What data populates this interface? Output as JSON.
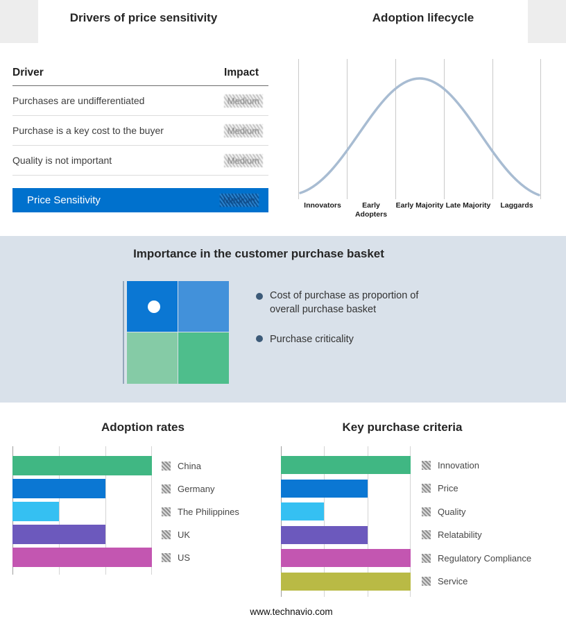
{
  "drivers": {
    "title": "Drivers of price sensitivity",
    "columns": {
      "driver": "Driver",
      "impact": "Impact"
    },
    "rows": [
      {
        "label": "Purchases are undifferentiated",
        "impact": "Medium",
        "impact_redacted": true
      },
      {
        "label": "Purchase is a key cost to the buyer",
        "impact": "Medium",
        "impact_redacted": true
      },
      {
        "label": "Quality is not important",
        "impact": "Medium",
        "impact_redacted": true
      }
    ],
    "summary_row": {
      "label": "Price Sensitivity",
      "impact": "Medium",
      "impact_redacted": true
    },
    "accent_color": "#0071cd"
  },
  "basket": {
    "title": "Importance in the customer purchase basket",
    "bullets": [
      "Cost of purchase as proportion of overall purchase basket",
      "Purchase criticality"
    ],
    "quadrant_colors": [
      "#0b77d3",
      "#4291da",
      "#85cba6",
      "#4ebe8c"
    ],
    "band_background": "#d9e1ea",
    "bullet_color": "#3c5a78"
  },
  "chart_data": [
    {
      "type": "line",
      "title": "Adoption lifecycle",
      "shape": "bell_curve",
      "categories": [
        "Innovators",
        "Early Adopters",
        "Early Majority",
        "Late Majority",
        "Laggards"
      ],
      "y_axis": "none (qualitative normal-distribution adoption curve)",
      "grid": "vertical segment dividers between the five adopter groups",
      "curve_color": "#a8bcd2"
    },
    {
      "type": "bar",
      "orientation": "horizontal",
      "title": "Adoption rates",
      "categories": [
        "China",
        "Germany",
        "The Philippines",
        "UK",
        "US"
      ],
      "values": [
        3,
        2,
        1,
        2,
        3
      ],
      "xlim": [
        0,
        3
      ],
      "x_ticks_labeled": false,
      "note": "values estimated in gridline units; axis has no numeric labels",
      "colors": [
        "#40b783",
        "#0b77d3",
        "#35c0f2",
        "#6c59bd",
        "#c356b1"
      ],
      "legend_position": "right",
      "legend_marker_style": "hatched-redacted"
    },
    {
      "type": "bar",
      "orientation": "horizontal",
      "title": "Key purchase criteria",
      "categories": [
        "Innovation",
        "Price",
        "Quality",
        "Relatability",
        "Regulatory Compliance",
        "Service"
      ],
      "values": [
        3,
        2,
        1,
        2,
        3,
        3
      ],
      "xlim": [
        0,
        3
      ],
      "x_ticks_labeled": false,
      "note": "values estimated in gridline units; axis has no numeric labels",
      "colors": [
        "#40b783",
        "#0b77d3",
        "#35c0f2",
        "#6c59bd",
        "#c356b1",
        "#b9ba45"
      ],
      "legend_position": "right",
      "legend_marker_style": "hatched-redacted"
    }
  ],
  "footer": "www.technavio.com"
}
